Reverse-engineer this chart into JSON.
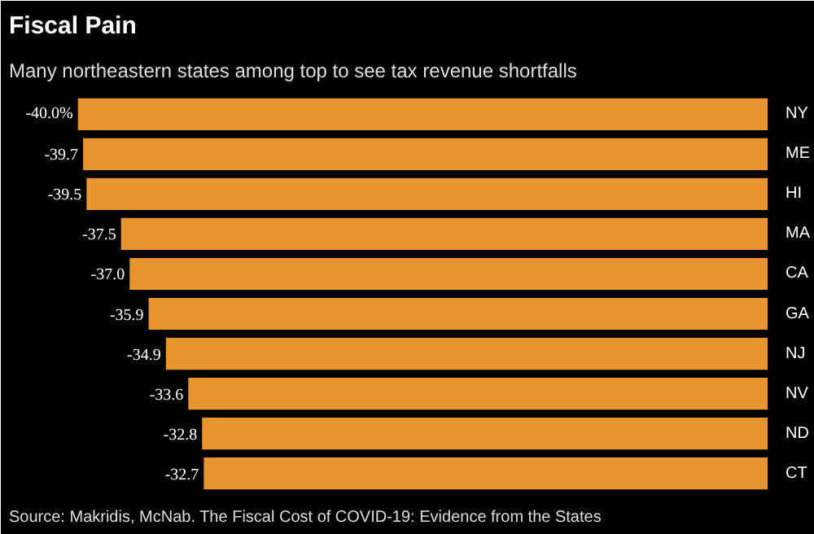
{
  "chart_data": {
    "type": "bar",
    "orientation": "horizontal",
    "title": "Fiscal Pain",
    "subtitle": "Many northeastern states among top to see tax revenue shortfalls",
    "categories": [
      "NY",
      "ME",
      "HI",
      "MA",
      "CA",
      "GA",
      "NJ",
      "NV",
      "ND",
      "CT"
    ],
    "values": [
      -40.0,
      -39.7,
      -39.5,
      -37.5,
      -37.0,
      -35.9,
      -34.9,
      -33.6,
      -32.8,
      -32.7
    ],
    "value_labels": [
      "-40.0%",
      "-39.7",
      "-39.5",
      "-37.5",
      "-37.0",
      "-35.9",
      "-34.9",
      "-33.6",
      "-32.8",
      "-32.7"
    ],
    "color": "#e8952f",
    "grid": false,
    "tick_labels": "y",
    "annotations": [
      "Source: Makridis, McNab. The Fiscal Cost of COVID-19: Evidence from the States"
    ]
  }
}
